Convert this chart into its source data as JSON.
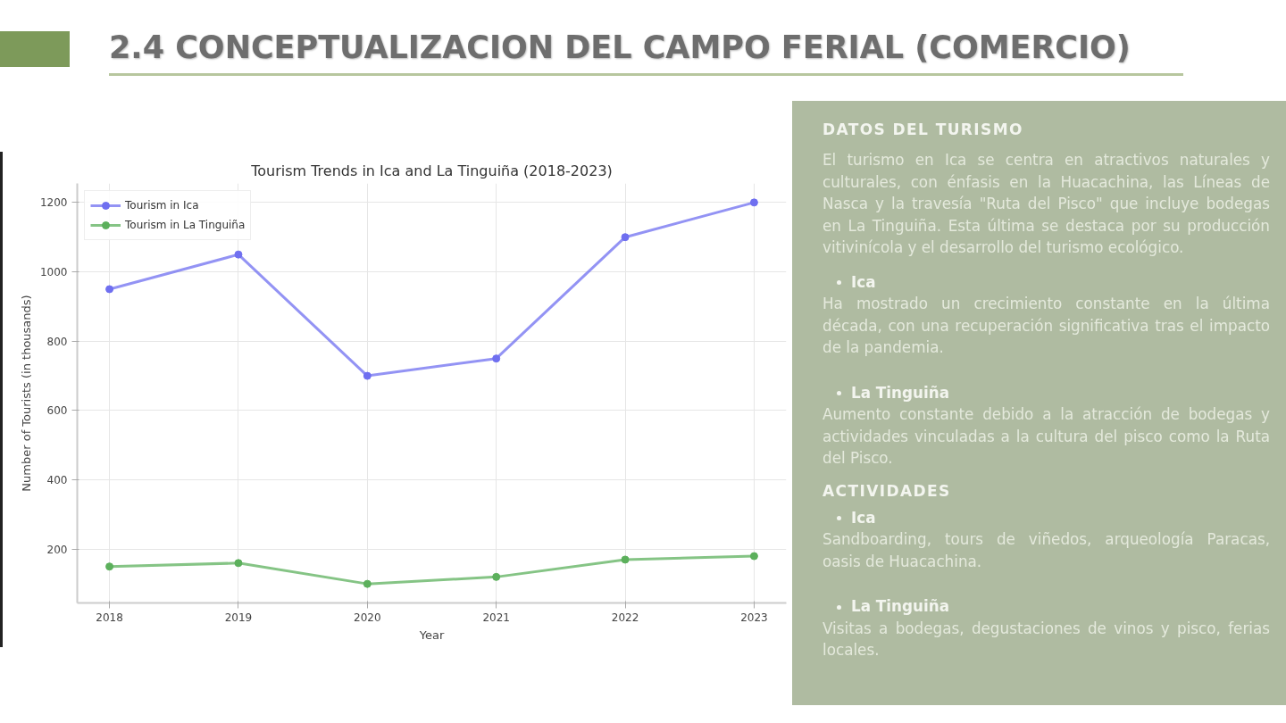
{
  "chart_data": [
    {
      "type": "line",
      "title": "Tourism Trends in Ica and La Tinguiña (2018-2023)",
      "xlabel": "Year",
      "ylabel": "Number of Tourists (in thousands)",
      "annotations": [
        "2.4 CONCEPTUALIZACION DEL CAMPO FERIAL (COMERCIO)"
      ],
      "x": [
        2018,
        2019,
        2020,
        2021,
        2022,
        2023
      ],
      "series": [
        {
          "name": "Tourism in Ica",
          "color": "#6f6ff0",
          "values": [
            950,
            1050,
            700,
            750,
            1100,
            1200
          ]
        },
        {
          "name": "Tourism in La Tinguiña",
          "color": "#5cb05c",
          "values": [
            150,
            160,
            100,
            120,
            170,
            180
          ]
        }
      ],
      "xlim": [
        2017.75,
        2023.25
      ],
      "ylim": [
        45,
        1255
      ],
      "xticks": [
        2018,
        2019,
        2020,
        2021,
        2022,
        2023
      ],
      "yticks": [
        200,
        400,
        600,
        800,
        1000,
        1200
      ],
      "grid": true,
      "legend": "top left",
      "marker": "circle"
    },
    {
      "type": "other",
      "title": "DATOS DEL TURISMO",
      "subtitle": "El turismo en Ica se centra en atractivos naturales y culturales, con énfasis en la Huacachina, las Líneas de Nasca y la travesía \"Ruta del Pisco\" que incluye bodegas en La Tinguiña. Esta última se destaca por su producción vitivinícola y el desarrollo del turismo ecológico.",
      "annotations": [
        "Ica",
        "Ha mostrado un crecimiento constante en la última década, con una recuperación significativa tras el impacto de la pandemia.",
        "La Tinguiña",
        "Aumento constante debido a la atracción de bodegas y actividades vinculadas a la cultura del pisco como la Ruta del Pisco."
      ]
    },
    {
      "type": "other",
      "title": "ACTIVIDADES",
      "annotations": [
        "Ica",
        "Sandboarding, tours de viñedos, arqueología Paracas, oasis de Huacachina.",
        "La Tinguiña",
        "Visitas a bodegas, degustaciones de vinos y pisco, ferias locales."
      ]
    }
  ]
}
